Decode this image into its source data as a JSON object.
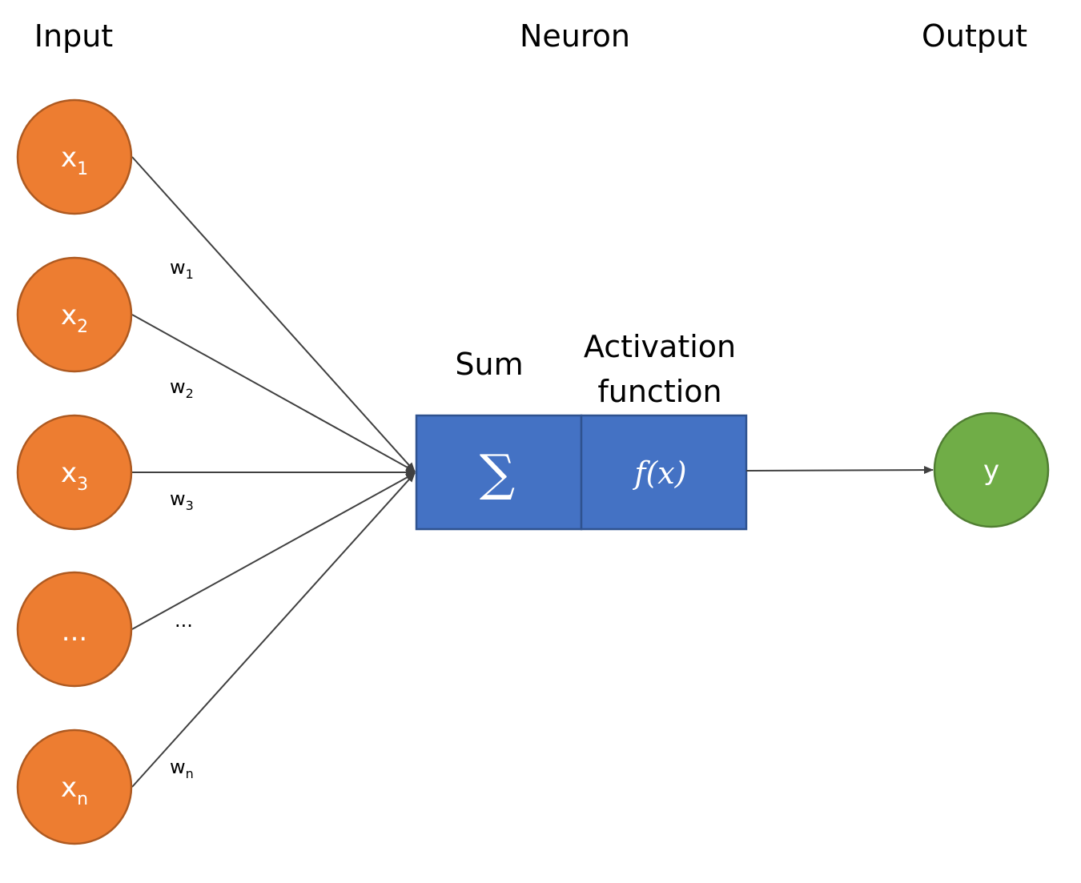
{
  "headings": {
    "input": "Input",
    "neuron": "Neuron",
    "output": "Output",
    "sum": "Sum",
    "activation_line1": "Activation",
    "activation_line2": "function"
  },
  "inputs": [
    {
      "base": "x",
      "sub": "1"
    },
    {
      "base": "x",
      "sub": "2"
    },
    {
      "base": "x",
      "sub": "3"
    },
    {
      "base": "...",
      "sub": ""
    },
    {
      "base": "x",
      "sub": "n"
    }
  ],
  "weights": [
    {
      "base": "w",
      "sub": "1"
    },
    {
      "base": "w",
      "sub": "2"
    },
    {
      "base": "w",
      "sub": "3"
    },
    {
      "base": "...",
      "sub": ""
    },
    {
      "base": "w",
      "sub": "n"
    }
  ],
  "neuron": {
    "sum_symbol": "∑",
    "activation_symbol": "f(x)"
  },
  "output": {
    "label": "y"
  },
  "colors": {
    "input_fill": "#ED7D31",
    "input_stroke": "#AE5A21",
    "box_fill": "#4472C4",
    "box_stroke": "#2F528F",
    "output_fill": "#70AD47",
    "output_stroke": "#507E32",
    "edge": "#404040"
  }
}
